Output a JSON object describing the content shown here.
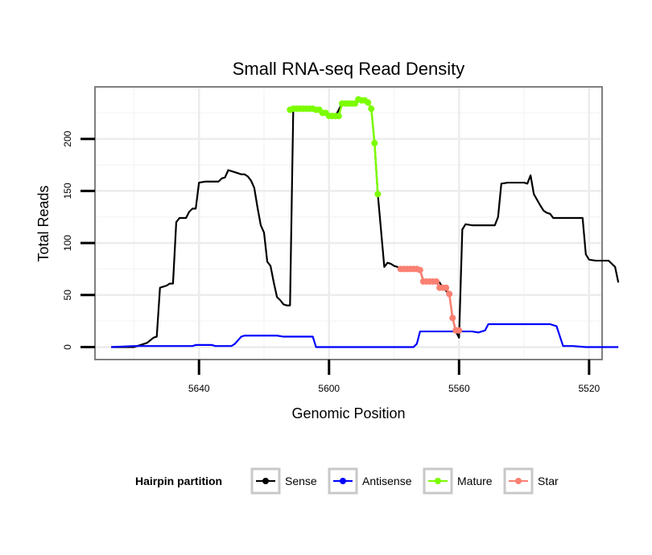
{
  "chart_data": {
    "type": "line",
    "title": "Small RNA-seq Read Density",
    "xlabel": "Genomic Position",
    "ylabel": "Total Reads",
    "xlim": [
      5672,
      5516
    ],
    "ylim": [
      -12,
      250
    ],
    "x_reversed": true,
    "x_ticks": [
      5640,
      5600,
      5560,
      5520
    ],
    "y_ticks": [
      0,
      50,
      100,
      150,
      200
    ],
    "grid": true,
    "legend": {
      "title": "Hairpin partition",
      "position": "bottom",
      "entries": [
        "Sense",
        "Antisense",
        "Mature",
        "Star"
      ]
    },
    "colors": {
      "Sense": "#000000",
      "Antisense": "#0000ff",
      "Mature": "#7cfc00",
      "Star": "#fa8072"
    },
    "series": [
      {
        "name": "Sense",
        "points": [
          [
            5667,
            0
          ],
          [
            5660,
            0
          ],
          [
            5658,
            2
          ],
          [
            5656,
            4
          ],
          [
            5654,
            9
          ],
          [
            5653,
            10
          ],
          [
            5652,
            57
          ],
          [
            5650,
            59
          ],
          [
            5649,
            61
          ],
          [
            5648,
            61
          ],
          [
            5647,
            120
          ],
          [
            5646,
            124
          ],
          [
            5644,
            124
          ],
          [
            5643,
            130
          ],
          [
            5642,
            133
          ],
          [
            5641,
            133
          ],
          [
            5640,
            158
          ],
          [
            5638,
            159
          ],
          [
            5636,
            159
          ],
          [
            5634,
            159
          ],
          [
            5633,
            162
          ],
          [
            5632,
            163
          ],
          [
            5631,
            170
          ],
          [
            5629,
            168
          ],
          [
            5627,
            166
          ],
          [
            5626,
            166
          ],
          [
            5625,
            164
          ],
          [
            5624,
            160
          ],
          [
            5623,
            153
          ],
          [
            5622,
            134
          ],
          [
            5621,
            117
          ],
          [
            5620,
            110
          ],
          [
            5619,
            82
          ],
          [
            5618,
            78
          ],
          [
            5617,
            62
          ],
          [
            5616,
            48
          ],
          [
            5615,
            45
          ],
          [
            5614,
            41
          ],
          [
            5613,
            40
          ],
          [
            5612,
            40
          ],
          [
            5611,
            229
          ],
          [
            5609,
            230
          ],
          [
            5606,
            230
          ],
          [
            5604,
            229
          ],
          [
            5602,
            226
          ],
          [
            5600,
            223
          ],
          [
            5598,
            222
          ],
          [
            5596,
            234
          ],
          [
            5594,
            234
          ],
          [
            5593,
            235
          ],
          [
            5592,
            234
          ],
          [
            5591,
            238
          ],
          [
            5590,
            237
          ],
          [
            5589,
            236
          ],
          [
            5588,
            235
          ],
          [
            5587,
            229
          ],
          [
            5586,
            196
          ],
          [
            5585,
            147
          ],
          [
            5583,
            77
          ],
          [
            5582,
            81
          ],
          [
            5581,
            80
          ],
          [
            5580,
            78
          ],
          [
            5579,
            77
          ],
          [
            5578,
            75
          ],
          [
            5576,
            75
          ],
          [
            5574,
            74
          ],
          [
            5572,
            74
          ],
          [
            5571,
            64
          ],
          [
            5567,
            64
          ],
          [
            5566,
            62
          ],
          [
            5565,
            57
          ],
          [
            5563,
            51
          ],
          [
            5562,
            28
          ],
          [
            5561,
            15
          ],
          [
            5560,
            9
          ],
          [
            5559,
            113
          ],
          [
            5558,
            118
          ],
          [
            5556,
            117
          ],
          [
            5550,
            117
          ],
          [
            5549,
            117
          ],
          [
            5548,
            125
          ],
          [
            5547,
            157
          ],
          [
            5545,
            158
          ],
          [
            5540,
            158
          ],
          [
            5539,
            157
          ],
          [
            5538,
            165
          ],
          [
            5537,
            147
          ],
          [
            5535,
            136
          ],
          [
            5534,
            131
          ],
          [
            5533,
            129
          ],
          [
            5532,
            128
          ],
          [
            5531,
            124
          ],
          [
            5526,
            124
          ],
          [
            5523,
            124
          ],
          [
            5522,
            124
          ],
          [
            5521,
            89
          ],
          [
            5520,
            84
          ],
          [
            5518,
            83
          ],
          [
            5516,
            83
          ],
          [
            5514,
            83
          ],
          [
            5513,
            80
          ],
          [
            5512,
            77
          ],
          [
            5511,
            62
          ]
        ]
      },
      {
        "name": "Antisense",
        "points": [
          [
            5667,
            0
          ],
          [
            5660,
            1
          ],
          [
            5642,
            1
          ],
          [
            5641,
            2
          ],
          [
            5636,
            2
          ],
          [
            5635,
            1
          ],
          [
            5630,
            1
          ],
          [
            5629,
            3
          ],
          [
            5627,
            10
          ],
          [
            5626,
            11
          ],
          [
            5616,
            11
          ],
          [
            5614,
            10
          ],
          [
            5605,
            10
          ],
          [
            5604,
            0
          ],
          [
            5584,
            0
          ],
          [
            5583,
            0
          ],
          [
            5582,
            0
          ],
          [
            5574,
            0
          ],
          [
            5573,
            3
          ],
          [
            5572,
            15
          ],
          [
            5570,
            15
          ],
          [
            5557,
            15
          ],
          [
            5556,
            15
          ],
          [
            5554,
            14
          ],
          [
            5552,
            16
          ],
          [
            5551,
            22
          ],
          [
            5548,
            22
          ],
          [
            5538,
            22
          ],
          [
            5532,
            22
          ],
          [
            5530,
            20
          ],
          [
            5528,
            1
          ],
          [
            5525,
            1
          ],
          [
            5521,
            0
          ],
          [
            5511,
            0
          ]
        ]
      },
      {
        "name": "Mature",
        "x": [
          5612,
          5611,
          5610,
          5609,
          5608,
          5607,
          5606,
          5605,
          5604,
          5603,
          5602,
          5601,
          5600,
          5599,
          5598,
          5597,
          5596,
          5595,
          5594,
          5593,
          5592,
          5591,
          5590,
          5589,
          5588,
          5587,
          5586,
          5585
        ],
        "values": [
          228,
          229,
          229,
          229,
          229,
          229,
          229,
          229,
          228,
          228,
          225,
          225,
          222,
          222,
          222,
          222,
          234,
          234,
          234,
          234,
          234,
          238,
          237,
          237,
          235,
          229,
          196,
          147
        ]
      },
      {
        "name": "Star",
        "x": [
          5578,
          5577,
          5576,
          5575,
          5574,
          5573,
          5572,
          5571,
          5570,
          5569,
          5568,
          5567,
          5566,
          5565,
          5564,
          5563,
          5562,
          5561,
          5560
        ],
        "values": [
          75,
          75,
          75,
          75,
          75,
          75,
          74,
          63,
          63,
          63,
          63,
          63,
          57,
          57,
          57,
          51,
          28,
          16,
          16
        ]
      }
    ]
  }
}
